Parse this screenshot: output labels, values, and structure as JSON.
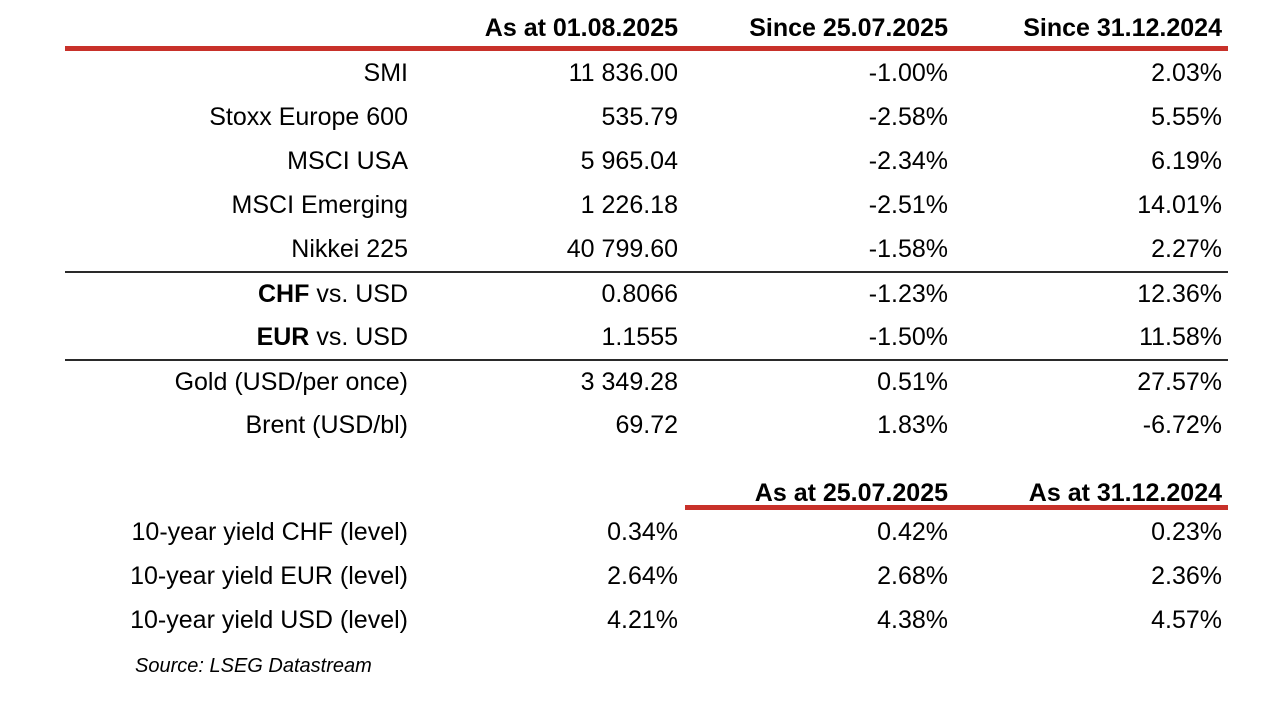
{
  "colors": {
    "accent_red": "#C8312A",
    "separator_black": "#2a2a2a",
    "text": "#000000"
  },
  "section1": {
    "col_headers": [
      "As at 01.08.2025",
      "Since 25.07.2025",
      "Since 31.12.2024"
    ],
    "rows": [
      {
        "label_bold": "",
        "label": "SMI",
        "v1": "11 836.00",
        "v2": "-1.00%",
        "v3": "2.03%"
      },
      {
        "label_bold": "",
        "label": "Stoxx Europe 600",
        "v1": "535.79",
        "v2": "-2.58%",
        "v3": "5.55%"
      },
      {
        "label_bold": "",
        "label": "MSCI USA",
        "v1": "5 965.04",
        "v2": "-2.34%",
        "v3": "6.19%"
      },
      {
        "label_bold": "",
        "label": "MSCI Emerging",
        "v1": "1 226.18",
        "v2": "-2.51%",
        "v3": "14.01%"
      },
      {
        "label_bold": "",
        "label": "Nikkei 225",
        "v1": "40 799.60",
        "v2": "-1.58%",
        "v3": "2.27%"
      },
      {
        "label_bold": "CHF",
        "label": " vs. USD",
        "v1": "0.8066",
        "v2": "-1.23%",
        "v3": "12.36%"
      },
      {
        "label_bold": "EUR",
        "label": " vs. USD",
        "v1": "1.1555",
        "v2": "-1.50%",
        "v3": "11.58%"
      },
      {
        "label_bold": "",
        "label": "Gold (USD/per once)",
        "v1": "3 349.28",
        "v2": "0.51%",
        "v3": "27.57%"
      },
      {
        "label_bold": "",
        "label": "Brent (USD/bl)",
        "v1": "69.72",
        "v2": "1.83%",
        "v3": "-6.72%"
      }
    ]
  },
  "section2": {
    "col_headers": [
      "As at 25.07.2025",
      "As at 31.12.2024"
    ],
    "rows": [
      {
        "label": "10-year yield CHF (level)",
        "v1": "0.34%",
        "v2": "0.42%",
        "v3": "0.23%"
      },
      {
        "label": "10-year yield EUR (level)",
        "v1": "2.64%",
        "v2": "2.68%",
        "v3": "2.36%"
      },
      {
        "label": "10-year yield USD (level)",
        "v1": "4.21%",
        "v2": "4.38%",
        "v3": "4.57%"
      }
    ]
  },
  "source_note": "Source: LSEG Datastream",
  "chart_data": {
    "type": "table",
    "tables": [
      {
        "columns": [
          "",
          "As at 01.08.2025",
          "Since 25.07.2025",
          "Since 31.12.2024"
        ],
        "rows": [
          [
            "SMI",
            "11 836.00",
            "-1.00%",
            "2.03%"
          ],
          [
            "Stoxx Europe 600",
            "535.79",
            "-2.58%",
            "5.55%"
          ],
          [
            "MSCI USA",
            "5 965.04",
            "-2.34%",
            "6.19%"
          ],
          [
            "MSCI Emerging",
            "1 226.18",
            "-2.51%",
            "14.01%"
          ],
          [
            "Nikkei 225",
            "40 799.60",
            "-1.58%",
            "2.27%"
          ],
          [
            "CHF vs. USD",
            "0.8066",
            "-1.23%",
            "12.36%"
          ],
          [
            "EUR vs. USD",
            "1.1555",
            "-1.50%",
            "11.58%"
          ],
          [
            "Gold (USD/per once)",
            "3 349.28",
            "0.51%",
            "27.57%"
          ],
          [
            "Brent (USD/bl)",
            "69.72",
            "1.83%",
            "-6.72%"
          ]
        ]
      },
      {
        "columns": [
          "",
          "As at 01.08.2025",
          "As at 25.07.2025",
          "As at 31.12.2024"
        ],
        "rows": [
          [
            "10-year yield CHF (level)",
            "0.34%",
            "0.42%",
            "0.23%"
          ],
          [
            "10-year yield EUR (level)",
            "2.64%",
            "2.68%",
            "2.36%"
          ],
          [
            "10-year yield USD (level)",
            "4.21%",
            "4.38%",
            "4.57%"
          ]
        ]
      }
    ],
    "title": "",
    "notes": "Source: LSEG Datastream"
  }
}
